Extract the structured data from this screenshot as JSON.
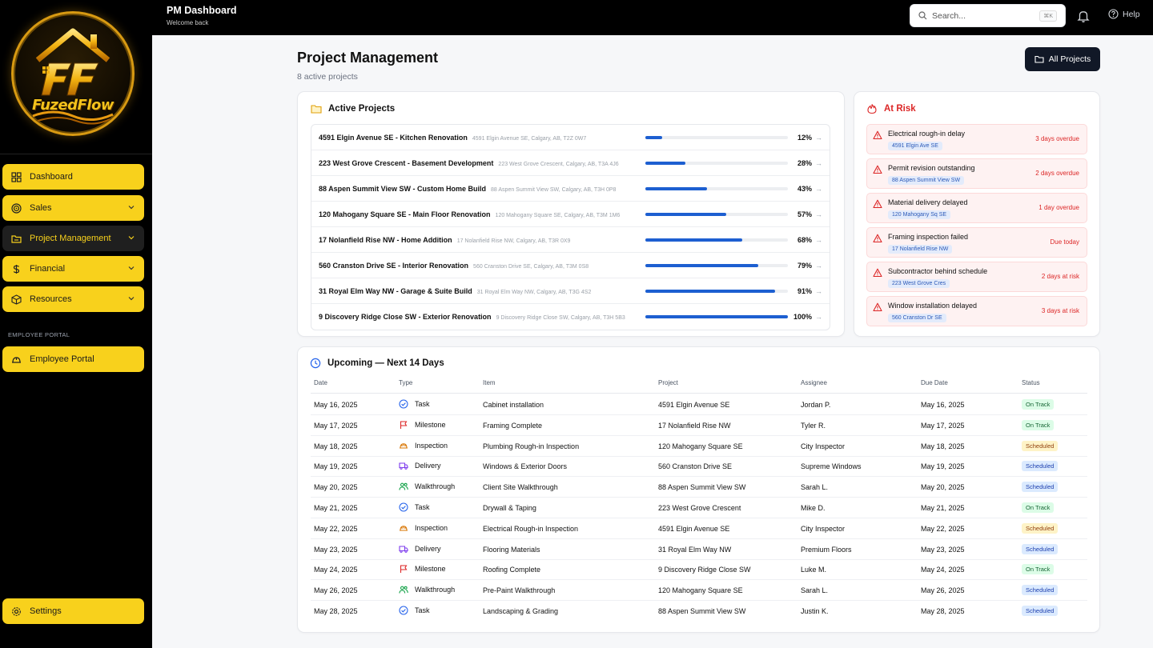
{
  "brand": {
    "name": "FuzedFlow",
    "accent": "#f8d11c"
  },
  "topbar": {
    "title": "PM Dashboard",
    "subtitle": "Welcome back",
    "search_placeholder": "Search...",
    "search_shortcut": "⌘K",
    "help_label": "Help"
  },
  "sidebar": {
    "items": [
      {
        "label": "Dashboard",
        "icon": "grid-icon",
        "chevron": false
      },
      {
        "label": "Sales",
        "icon": "target-icon",
        "chevron": true
      },
      {
        "label": "Project Management",
        "icon": "folder-icon",
        "chevron": true,
        "active": true
      },
      {
        "label": "Financial",
        "icon": "dollar-icon",
        "chevron": true
      },
      {
        "label": "Resources",
        "icon": "box-icon",
        "chevron": true
      }
    ],
    "section_label": "EMPLOYEE PORTAL",
    "portal_label": "Employee Portal",
    "settings_label": "Settings"
  },
  "header": {
    "title": "Project Management",
    "subtitle": "8 active projects",
    "all_projects_label": "All Projects"
  },
  "active_projects": {
    "title": "Active Projects",
    "rows": [
      {
        "name": "4591 Elgin Avenue SE - Kitchen Renovation",
        "address": "4591 Elgin Avenue SE, Calgary, AB, T2Z 0W7",
        "progress": 12,
        "progress_label": "12%"
      },
      {
        "name": "223 West Grove Crescent - Basement Development",
        "address": "223 West Grove Crescent, Calgary, AB, T3A 4J6",
        "progress": 28,
        "progress_label": "28%"
      },
      {
        "name": "88 Aspen Summit View SW - Custom Home Build",
        "address": "88 Aspen Summit View SW, Calgary, AB, T3H 0P8",
        "progress": 43,
        "progress_label": "43%"
      },
      {
        "name": "120 Mahogany Square SE - Main Floor Renovation",
        "address": "120 Mahogany Square SE, Calgary, AB, T3M 1M6",
        "progress": 57,
        "progress_label": "57%"
      },
      {
        "name": "17 Nolanfield Rise NW - Home Addition",
        "address": "17 Nolanfield Rise NW, Calgary, AB, T3R 0X9",
        "progress": 68,
        "progress_label": "68%"
      },
      {
        "name": "560 Cranston Drive SE - Interior Renovation",
        "address": "560 Cranston Drive SE, Calgary, AB, T3M 0S8",
        "progress": 79,
        "progress_label": "79%"
      },
      {
        "name": "31 Royal Elm Way NW - Garage & Suite Build",
        "address": "31 Royal Elm Way NW, Calgary, AB, T3G 4S2",
        "progress": 91,
        "progress_label": "91%"
      },
      {
        "name": "9 Discovery Ridge Close SW - Exterior Renovation",
        "address": "9 Discovery Ridge Close SW, Calgary, AB, T3H 5B3",
        "progress": 100,
        "progress_label": "100%"
      }
    ]
  },
  "at_risk": {
    "title": "At Risk",
    "items": [
      {
        "title": "Electrical rough-in delay",
        "tag": "4591 Elgin Ave SE",
        "status": "3 days overdue"
      },
      {
        "title": "Permit revision outstanding",
        "tag": "88 Aspen Summit View SW",
        "status": "2 days overdue"
      },
      {
        "title": "Material delivery delayed",
        "tag": "120 Mahogany Sq SE",
        "status": "1 day overdue"
      },
      {
        "title": "Framing inspection failed",
        "tag": "17 Nolanfield Rise NW",
        "status": "Due today"
      },
      {
        "title": "Subcontractor behind schedule",
        "tag": "223 West Grove Cres",
        "status": "2 days at risk"
      },
      {
        "title": "Window installation delayed",
        "tag": "560 Cranston Dr SE",
        "status": "3 days at risk"
      }
    ]
  },
  "upcoming": {
    "title": "Upcoming — Next 14 Days",
    "columns": [
      "Date",
      "Type",
      "Item",
      "Project",
      "Assignee",
      "Due Date",
      "Status"
    ],
    "rows": [
      {
        "date": "May 16, 2025",
        "type": "Task",
        "icon": "check-circle-icon",
        "item": "Cabinet installation",
        "project": "4591 Elgin Avenue SE",
        "assignee": "Jordan P.",
        "due": "May 16, 2025",
        "status": "On Track",
        "status_style": "on"
      },
      {
        "date": "May 17, 2025",
        "type": "Milestone",
        "icon": "flag-icon",
        "item": "Framing Complete",
        "project": "17 Nolanfield Rise NW",
        "assignee": "Tyler R.",
        "due": "May 17, 2025",
        "status": "On Track",
        "status_style": "on"
      },
      {
        "date": "May 18, 2025",
        "type": "Inspection",
        "icon": "hardhat-icon",
        "item": "Plumbing Rough-in Inspection",
        "project": "120 Mahogany Square SE",
        "assignee": "City Inspector",
        "due": "May 18, 2025",
        "status": "Scheduled",
        "status_style": "sch-y"
      },
      {
        "date": "May 19, 2025",
        "type": "Delivery",
        "icon": "truck-icon",
        "item": "Windows & Exterior Doors",
        "project": "560 Cranston Drive SE",
        "assignee": "Supreme Windows",
        "due": "May 19, 2025",
        "status": "Scheduled",
        "status_style": "sch-b"
      },
      {
        "date": "May 20, 2025",
        "type": "Walkthrough",
        "icon": "users-icon",
        "item": "Client Site Walkthrough",
        "project": "88 Aspen Summit View SW",
        "assignee": "Sarah L.",
        "due": "May 20, 2025",
        "status": "Scheduled",
        "status_style": "sch-b"
      },
      {
        "date": "May 21, 2025",
        "type": "Task",
        "icon": "check-circle-icon",
        "item": "Drywall & Taping",
        "project": "223 West Grove Crescent",
        "assignee": "Mike D.",
        "due": "May 21, 2025",
        "status": "On Track",
        "status_style": "on"
      },
      {
        "date": "May 22, 2025",
        "type": "Inspection",
        "icon": "hardhat-icon",
        "item": "Electrical Rough-in Inspection",
        "project": "4591 Elgin Avenue SE",
        "assignee": "City Inspector",
        "due": "May 22, 2025",
        "status": "Scheduled",
        "status_style": "sch-y"
      },
      {
        "date": "May 23, 2025",
        "type": "Delivery",
        "icon": "truck-icon",
        "item": "Flooring Materials",
        "project": "31 Royal Elm Way NW",
        "assignee": "Premium Floors",
        "due": "May 23, 2025",
        "status": "Scheduled",
        "status_style": "sch-b"
      },
      {
        "date": "May 24, 2025",
        "type": "Milestone",
        "icon": "flag-icon",
        "item": "Roofing Complete",
        "project": "9 Discovery Ridge Close SW",
        "assignee": "Luke M.",
        "due": "May 24, 2025",
        "status": "On Track",
        "status_style": "on"
      },
      {
        "date": "May 26, 2025",
        "type": "Walkthrough",
        "icon": "users-icon",
        "item": "Pre-Paint Walkthrough",
        "project": "120 Mahogany Square SE",
        "assignee": "Sarah L.",
        "due": "May 26, 2025",
        "status": "Scheduled",
        "status_style": "sch-b"
      },
      {
        "date": "May 28, 2025",
        "type": "Task",
        "icon": "check-circle-icon",
        "item": "Landscaping & Grading",
        "project": "88 Aspen Summit View SW",
        "assignee": "Justin K.",
        "due": "May 28, 2025",
        "status": "Scheduled",
        "status_style": "sch-b"
      }
    ]
  }
}
